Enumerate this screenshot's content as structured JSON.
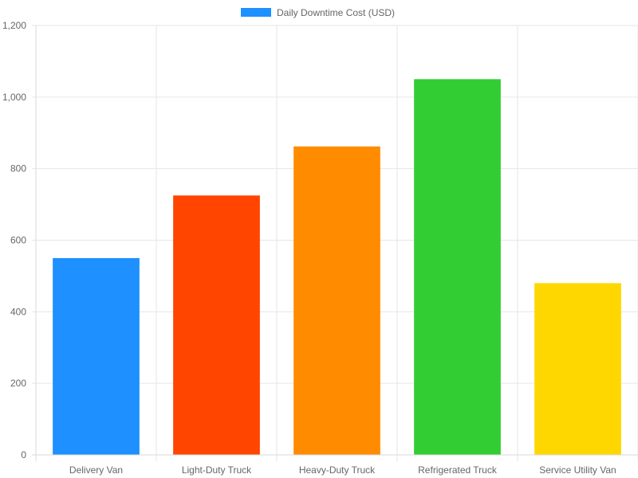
{
  "chart_data": {
    "type": "bar",
    "categories": [
      "Delivery Van",
      "Light-Duty Truck",
      "Heavy-Duty Truck",
      "Refrigerated Truck",
      "Service Utility Van"
    ],
    "series": [
      {
        "name": "Daily Downtime Cost (USD)",
        "values": [
          550,
          725,
          862,
          1050,
          480
        ],
        "colors": [
          "#1E90FF",
          "#FF4500",
          "#FF8C00",
          "#32CD32",
          "#FFD700"
        ]
      }
    ],
    "legend_color": "#1E90FF",
    "ylim": [
      0,
      1200
    ],
    "yticks": [
      0,
      200,
      400,
      600,
      800,
      1000,
      1200
    ],
    "ytick_labels": [
      "0",
      "200",
      "400",
      "600",
      "800",
      "1,000",
      "1,200"
    ],
    "grid": true,
    "legend_position": "top-center"
  }
}
